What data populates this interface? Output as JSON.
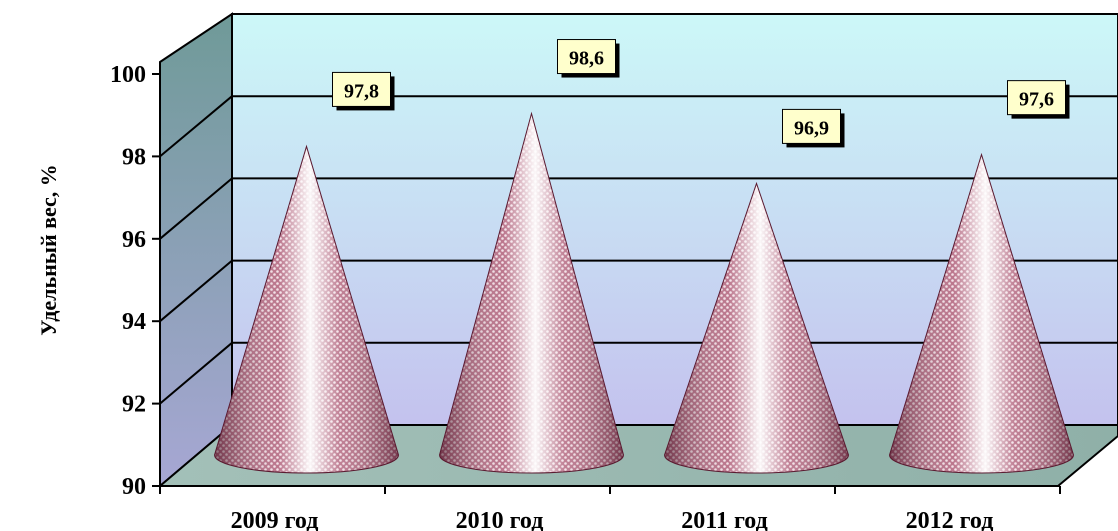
{
  "chart_data": {
    "type": "bar",
    "style": "3d-cone",
    "categories": [
      "2009 год",
      "2010 год",
      "2011 год",
      "2012 год"
    ],
    "series": [
      {
        "values": [
          97.8,
          98.6,
          96.9,
          97.6
        ]
      }
    ],
    "data_labels": [
      "97,8",
      "98,6",
      "96,9",
      "97,6"
    ],
    "ylabel": "Удельный вес, %",
    "xlabel": "",
    "title": "",
    "ylim": [
      90,
      100
    ],
    "yticks": [
      "90",
      "92",
      "94",
      "96",
      "98",
      "100"
    ],
    "grid": true,
    "legend": "none",
    "colors": {
      "cone": "#c98a9c",
      "cone_dark": "#7a3048",
      "cone_highlight": "#ffffff",
      "back_wall_top": "#ccf6f6",
      "back_wall_bottom": "#c6c6ee",
      "side_wall": "#8fa8a8",
      "floor": "#9cbcb4",
      "label_fill": "#ffffcc"
    }
  }
}
